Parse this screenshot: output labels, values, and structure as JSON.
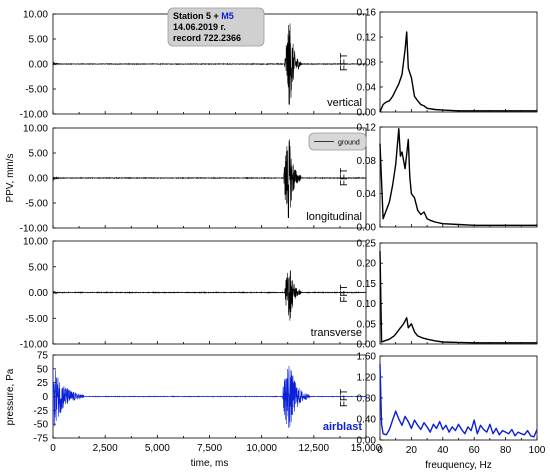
{
  "colors": {
    "seismic": "#000000",
    "airblast": "#0a1fd6",
    "info_box_bg": "#d0d0d0",
    "legend_box_bg": "#d8d8d8"
  },
  "info_box": {
    "line1_prefix": "Station 5 + ",
    "line1_highlight": "M5",
    "line2": "14.06.2019 г.",
    "line3": "record 722.2366"
  },
  "legend": {
    "ground_label": "ground"
  },
  "chart_data": [
    {
      "type": "line",
      "component": "vertical",
      "label": "vertical",
      "ylabel": "",
      "xlim": [
        0,
        15000
      ],
      "ylim": [
        -10,
        10
      ],
      "yticks": [
        "10.00",
        "5.00",
        "0.00",
        "-5.00",
        "-10.00"
      ],
      "description_values": {
        "first_burst": {
          "t_ms": [
            0,
            500
          ],
          "amplitude_mm_s": 0.5
        },
        "main_burst": {
          "t_ms": [
            11100,
            11900
          ],
          "peak_t_ms": 11350,
          "max_mm_s": 9.6,
          "min_mm_s": -9.0
        }
      }
    },
    {
      "type": "line",
      "component": "longitudinal",
      "label": "longitudinal",
      "ylabel": "PPV, mm/s",
      "xlim": [
        0,
        15000
      ],
      "ylim": [
        -10,
        10
      ],
      "yticks": [
        "10.00",
        "5.00",
        "0.00",
        "-5.00",
        "-10.00"
      ],
      "description_values": {
        "first_burst": {
          "t_ms": [
            0,
            500
          ],
          "amplitude_mm_s": 0.6
        },
        "main_burst": {
          "t_ms": [
            11050,
            11900
          ],
          "peak_t_ms": 11300,
          "max_mm_s": 9.4,
          "min_mm_s": -8.5
        }
      }
    },
    {
      "type": "line",
      "component": "transverse",
      "label": "transverse",
      "ylabel": "",
      "xlim": [
        0,
        15000
      ],
      "ylim": [
        -10,
        10
      ],
      "yticks": [
        "10.00",
        "5.00",
        "0.00",
        "-5.00",
        "-10.00"
      ],
      "description_values": {
        "first_burst": {
          "t_ms": [
            0,
            500
          ],
          "amplitude_mm_s": 0.4
        },
        "main_burst": {
          "t_ms": [
            11100,
            11900
          ],
          "peak_t_ms": 11350,
          "max_mm_s": 5.4,
          "min_mm_s": -5.8
        }
      }
    },
    {
      "type": "line",
      "component": "airblast",
      "label": "airblast",
      "ylabel": "pressure, Pa",
      "xlabel": "time, ms",
      "xlim": [
        0,
        15000
      ],
      "ylim": [
        -75,
        75
      ],
      "yticks": [
        "75",
        "50",
        "25",
        "0",
        "-25",
        "-50",
        "-75"
      ],
      "xticks": [
        "0",
        "2,500",
        "5,000",
        "7,500",
        "10,000",
        "12,500",
        "15,000"
      ],
      "description_values": {
        "first_burst": {
          "t_ms": [
            0,
            1500
          ],
          "max_pa": 62,
          "min_pa": -55
        },
        "main_burst": {
          "t_ms": [
            11000,
            12300
          ],
          "peak_t_ms": 11300,
          "max_pa": 64,
          "min_pa": -70
        }
      }
    },
    {
      "type": "line",
      "component": "vertical",
      "ylabel": "FFT",
      "xlim": [
        0,
        100
      ],
      "ylim": [
        0,
        0.16
      ],
      "yticks": [
        "0.16",
        "0.12",
        "0.08",
        "0.04",
        "0.00"
      ],
      "x": [
        0,
        2,
        4,
        6,
        8,
        10,
        12,
        14,
        16,
        17,
        18,
        20,
        22,
        24,
        26,
        28,
        30,
        35,
        40,
        50,
        60,
        70,
        80,
        90,
        100
      ],
      "y": [
        0,
        0.012,
        0.016,
        0.018,
        0.025,
        0.035,
        0.045,
        0.06,
        0.1,
        0.128,
        0.07,
        0.055,
        0.025,
        0.018,
        0.012,
        0.01,
        0.006,
        0.004,
        0.003,
        0.002,
        0.002,
        0.002,
        0.002,
        0.002,
        0.002
      ]
    },
    {
      "type": "line",
      "component": "longitudinal",
      "ylabel": "FFT",
      "xlim": [
        0,
        100
      ],
      "ylim": [
        0,
        0.12
      ],
      "yticks": [
        "0.12",
        "0.08",
        "0.04",
        "0.00"
      ],
      "x": [
        0,
        2,
        4,
        6,
        8,
        10,
        12,
        13,
        14,
        16,
        18,
        19,
        20,
        22,
        24,
        26,
        28,
        30,
        32,
        35,
        40,
        50,
        60,
        70,
        80,
        90,
        100
      ],
      "y": [
        0.1,
        0.01,
        0.02,
        0.03,
        0.05,
        0.075,
        0.118,
        0.085,
        0.09,
        0.07,
        0.105,
        0.06,
        0.04,
        0.035,
        0.02,
        0.015,
        0.018,
        0.01,
        0.008,
        0.006,
        0.004,
        0.003,
        0.002,
        0.002,
        0.002,
        0.002,
        0.002
      ]
    },
    {
      "type": "line",
      "component": "transverse",
      "ylabel": "FFT",
      "xlim": [
        0,
        100
      ],
      "ylim": [
        0,
        0.25
      ],
      "yticks": [
        "0.25",
        "0.20",
        "0.15",
        "0.10",
        "0.05",
        "0.00"
      ],
      "x": [
        0,
        1,
        3,
        6,
        9,
        11,
        13,
        15,
        17,
        18,
        20,
        22,
        24,
        27,
        30,
        35,
        40,
        50,
        60,
        70,
        80,
        90,
        100
      ],
      "y": [
        0.23,
        0.005,
        0.008,
        0.012,
        0.02,
        0.03,
        0.04,
        0.05,
        0.065,
        0.04,
        0.05,
        0.03,
        0.02,
        0.015,
        0.012,
        0.008,
        0.005,
        0.004,
        0.003,
        0.003,
        0.003,
        0.003,
        0.003
      ]
    },
    {
      "type": "line",
      "component": "airblast",
      "ylabel": "FFT",
      "xlabel": "freuquency, Hz",
      "xlim": [
        0,
        100
      ],
      "ylim": [
        0,
        1.6
      ],
      "yticks": [
        "1.60",
        "1.20",
        "0.80",
        "0.40",
        "0.00"
      ],
      "xticks": [
        "0",
        "20",
        "40",
        "60",
        "80",
        "100"
      ],
      "x": [
        0,
        1,
        2,
        4,
        6,
        8,
        10,
        12,
        14,
        16,
        18,
        20,
        22,
        24,
        26,
        28,
        30,
        32,
        34,
        36,
        38,
        40,
        42,
        44,
        46,
        48,
        50,
        52,
        54,
        56,
        58,
        60,
        62,
        64,
        66,
        68,
        70,
        72,
        74,
        76,
        78,
        80,
        82,
        84,
        86,
        88,
        90,
        92,
        94,
        96,
        98,
        100
      ],
      "y": [
        1.45,
        0.3,
        0.12,
        0.1,
        0.2,
        0.38,
        0.55,
        0.4,
        0.28,
        0.45,
        0.35,
        0.22,
        0.38,
        0.28,
        0.2,
        0.33,
        0.25,
        0.15,
        0.3,
        0.22,
        0.35,
        0.2,
        0.28,
        0.15,
        0.25,
        0.18,
        0.3,
        0.2,
        0.12,
        0.25,
        0.18,
        0.38,
        0.12,
        0.28,
        0.2,
        0.15,
        0.3,
        0.12,
        0.22,
        0.1,
        0.18,
        0.15,
        0.12,
        0.2,
        0.08,
        0.15,
        0.12,
        0.1,
        0.18,
        0.08,
        0.06,
        0.2
      ]
    }
  ]
}
